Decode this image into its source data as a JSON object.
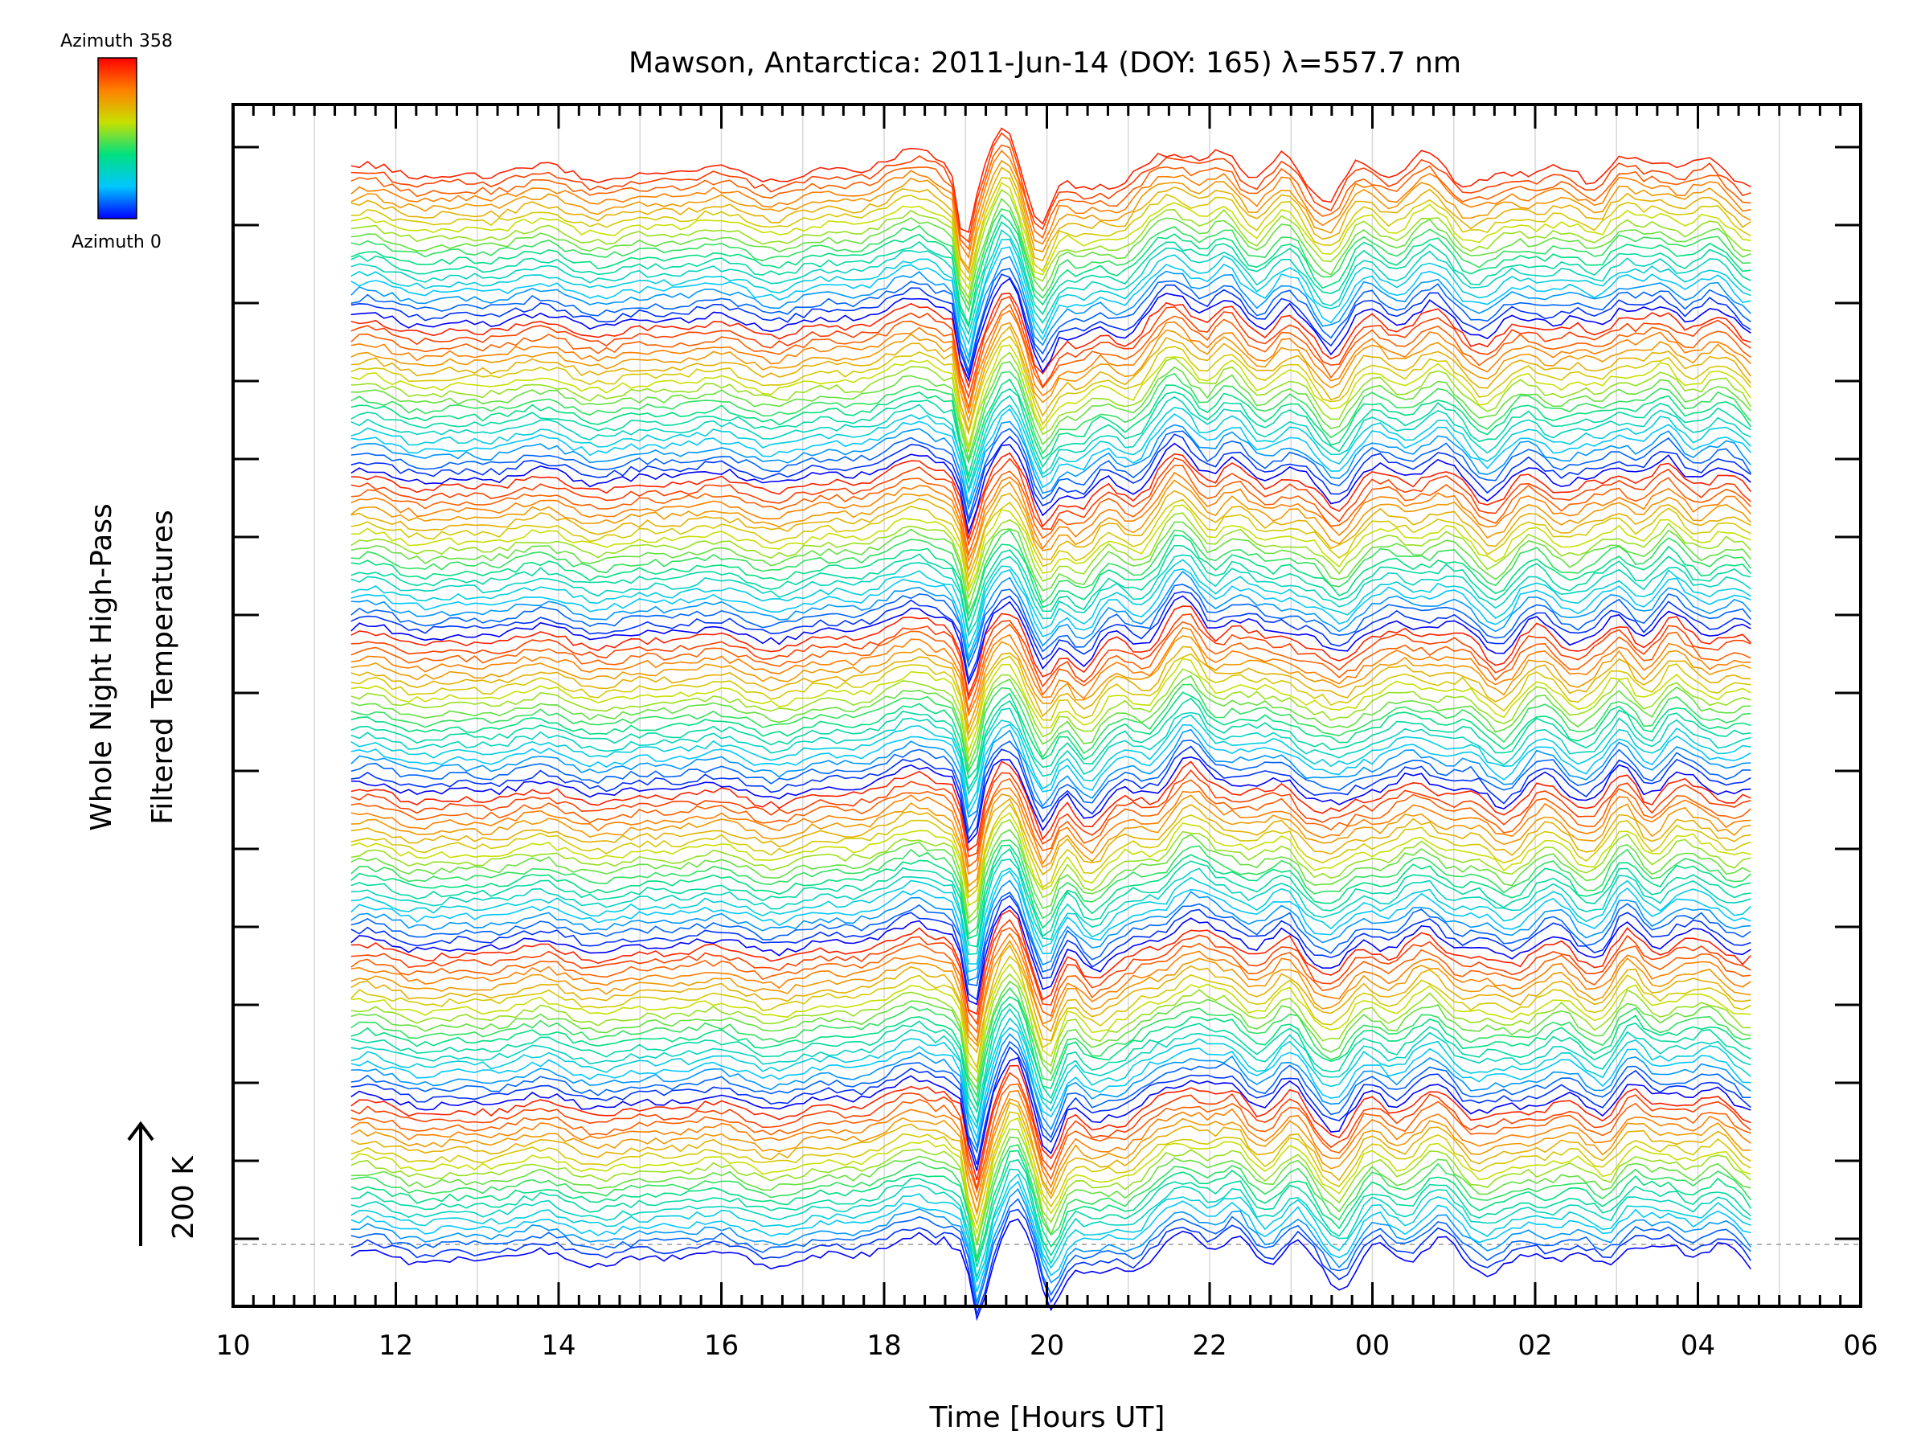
{
  "chart_data": {
    "type": "line",
    "title": "Mawson, Antarctica: 2011-Jun-14 (DOY: 165) λ=557.7 nm",
    "xlabel": "Time [Hours UT]",
    "ylabel_line1": "Whole Night High-Pass",
    "ylabel_line2": "Filtered Temperatures",
    "scale_bar_label": "200 K",
    "colorbar": {
      "top_label": "Azimuth 358",
      "bottom_label": "Azimuth 0",
      "colormap": [
        "#0000ff",
        "#00c8ff",
        "#00e080",
        "#c8e000",
        "#ff8000",
        "#ff0000"
      ]
    },
    "x_tick_labels": [
      "10",
      "12",
      "14",
      "16",
      "18",
      "20",
      "22",
      "00",
      "02",
      "04",
      "06"
    ],
    "x_ticks_hours": [
      10,
      12,
      14,
      16,
      18,
      20,
      22,
      24,
      26,
      28,
      30
    ],
    "xlim_hours": [
      10,
      30
    ],
    "data_range_hours": [
      11.45,
      28.65
    ],
    "series_count": 140,
    "azimuth_range": [
      0,
      358
    ],
    "colour_cycles": 7,
    "grid": true,
    "legend": "colorbar top-left"
  }
}
